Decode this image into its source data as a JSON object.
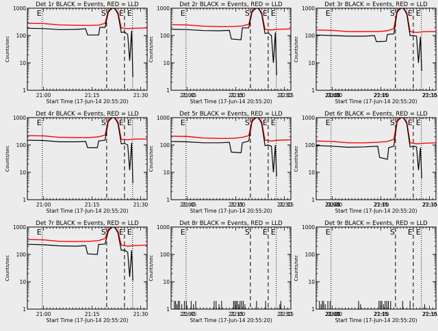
{
  "chart_data": {
    "type": "line",
    "yscale": "log",
    "ylim": [
      1,
      1000
    ],
    "ylabel": "Counts/sec",
    "xlabel": "Start Time (17-Jun-14 20:55:20)",
    "x_range_min": [
      0,
      37
    ],
    "x_tick_labels": [
      "21:00",
      "21:15",
      "21:30",
      "21:45",
      "22:00",
      "22:15",
      "22:30"
    ],
    "y_tick_labels": [
      "1",
      "10",
      "100",
      "1000"
    ],
    "series_legend": {
      "black": "Events",
      "red": "LLD"
    },
    "colors": {
      "events": "#000000",
      "lld": "#ff0000"
    },
    "markers": [
      {
        "label": "E",
        "x": 4.6,
        "style": "dotted"
      },
      {
        "label": "S",
        "x": 24.5,
        "style": "dashed"
      },
      {
        "label": "E",
        "x": 30.0,
        "style": "dashed"
      },
      {
        "label": "E",
        "x": 32.5,
        "style": "dotted"
      }
    ],
    "detectors": [
      {
        "title": "Det 1r BLACK = Events, RED = LLD",
        "has_lld": true,
        "ev": [
          [
            0,
            185
          ],
          [
            5,
            180
          ],
          [
            10,
            165
          ],
          [
            15,
            168
          ],
          [
            18,
            178
          ],
          [
            18.6,
            105
          ],
          [
            22,
            105
          ],
          [
            22.4,
            200
          ],
          [
            24,
            200
          ],
          [
            25,
            700
          ],
          [
            26,
            1000
          ],
          [
            27,
            1000
          ],
          [
            28,
            600
          ],
          [
            29,
            130
          ],
          [
            30,
            135
          ],
          [
            31,
            110
          ],
          [
            31.6,
            12
          ],
          [
            32.2,
            150
          ],
          [
            32.6,
            3
          ]
        ],
        "lld": [
          [
            0,
            280
          ],
          [
            5,
            275
          ],
          [
            10,
            245
          ],
          [
            15,
            238
          ],
          [
            19,
            235
          ],
          [
            22,
            240
          ],
          [
            24,
            280
          ],
          [
            25,
            800
          ],
          [
            26,
            1000
          ],
          [
            27,
            1000
          ],
          [
            28,
            700
          ],
          [
            29,
            190
          ],
          [
            31,
            180
          ],
          [
            33,
            185
          ],
          [
            37,
            190
          ]
        ]
      },
      {
        "title": "Det 2r BLACK = Events, RED = LLD",
        "has_lld": true,
        "ev": [
          [
            0,
            170
          ],
          [
            5,
            165
          ],
          [
            10,
            152
          ],
          [
            15,
            150
          ],
          [
            18,
            155
          ],
          [
            18.6,
            75
          ],
          [
            21.6,
            70
          ],
          [
            22,
            190
          ],
          [
            24,
            190
          ],
          [
            25,
            700
          ],
          [
            26,
            1000
          ],
          [
            27,
            1000
          ],
          [
            28,
            600
          ],
          [
            29,
            120
          ],
          [
            30,
            125
          ],
          [
            31,
            100
          ],
          [
            31.6,
            10
          ],
          [
            32.2,
            130
          ],
          [
            32.6,
            3.5
          ]
        ],
        "lld": [
          [
            0,
            250
          ],
          [
            5,
            245
          ],
          [
            10,
            220
          ],
          [
            15,
            215
          ],
          [
            19,
            215
          ],
          [
            22,
            225
          ],
          [
            24,
            260
          ],
          [
            25,
            800
          ],
          [
            26,
            1000
          ],
          [
            27,
            1000
          ],
          [
            28,
            700
          ],
          [
            29,
            170
          ],
          [
            31,
            160
          ],
          [
            33,
            170
          ],
          [
            37,
            175
          ]
        ]
      },
      {
        "title": "Det 3r BLACK = Events, RED = LLD",
        "has_lld": true,
        "ev": [
          [
            0,
            105
          ],
          [
            5,
            100
          ],
          [
            10,
            95
          ],
          [
            15,
            95
          ],
          [
            18,
            100
          ],
          [
            18.6,
            60
          ],
          [
            21.6,
            62
          ],
          [
            22,
            110
          ],
          [
            24,
            115
          ],
          [
            25,
            700
          ],
          [
            26,
            1000
          ],
          [
            27,
            1000
          ],
          [
            28,
            600
          ],
          [
            29,
            100
          ],
          [
            30,
            100
          ],
          [
            31,
            95
          ],
          [
            31.6,
            10
          ],
          [
            32.2,
            90
          ],
          [
            32.6,
            5
          ]
        ],
        "lld": [
          [
            0,
            160
          ],
          [
            5,
            155
          ],
          [
            10,
            140
          ],
          [
            15,
            140
          ],
          [
            19,
            140
          ],
          [
            22,
            150
          ],
          [
            24,
            180
          ],
          [
            25,
            800
          ],
          [
            26,
            1000
          ],
          [
            27,
            1000
          ],
          [
            28,
            700
          ],
          [
            29,
            140
          ],
          [
            31,
            130
          ],
          [
            33,
            138
          ],
          [
            37,
            140
          ]
        ]
      },
      {
        "title": "Det 4r BLACK = Events, RED = LLD",
        "has_lld": true,
        "ev": [
          [
            0,
            150
          ],
          [
            5,
            145
          ],
          [
            10,
            130
          ],
          [
            15,
            130
          ],
          [
            18,
            135
          ],
          [
            18.6,
            80
          ],
          [
            21.6,
            80
          ],
          [
            22,
            140
          ],
          [
            24,
            150
          ],
          [
            25,
            700
          ],
          [
            26,
            1000
          ],
          [
            27,
            1000
          ],
          [
            28,
            600
          ],
          [
            29,
            110
          ],
          [
            30,
            115
          ],
          [
            31,
            100
          ],
          [
            31.6,
            12
          ],
          [
            32.2,
            120
          ],
          [
            32.6,
            4
          ]
        ],
        "lld": [
          [
            0,
            220
          ],
          [
            5,
            215
          ],
          [
            10,
            190
          ],
          [
            15,
            185
          ],
          [
            19,
            185
          ],
          [
            22,
            200
          ],
          [
            24,
            230
          ],
          [
            25,
            800
          ],
          [
            26,
            1000
          ],
          [
            27,
            1000
          ],
          [
            28,
            700
          ],
          [
            29,
            160
          ],
          [
            31,
            155
          ],
          [
            33,
            165
          ],
          [
            37,
            165
          ]
        ]
      },
      {
        "title": "Det 5r BLACK = Events, RED = LLD",
        "has_lld": true,
        "ev": [
          [
            0,
            135
          ],
          [
            5,
            130
          ],
          [
            10,
            120
          ],
          [
            15,
            120
          ],
          [
            18,
            125
          ],
          [
            18.6,
            55
          ],
          [
            21.6,
            52
          ],
          [
            22,
            120
          ],
          [
            24,
            140
          ],
          [
            25,
            700
          ],
          [
            26,
            1000
          ],
          [
            27,
            1000
          ],
          [
            28,
            600
          ],
          [
            29,
            95
          ],
          [
            30,
            100
          ],
          [
            31,
            90
          ],
          [
            31.6,
            10
          ],
          [
            32.2,
            100
          ],
          [
            32.6,
            7
          ]
        ],
        "lld": [
          [
            0,
            210
          ],
          [
            5,
            205
          ],
          [
            10,
            180
          ],
          [
            15,
            175
          ],
          [
            19,
            175
          ],
          [
            22,
            190
          ],
          [
            24,
            220
          ],
          [
            25,
            800
          ],
          [
            26,
            1000
          ],
          [
            27,
            1000
          ],
          [
            28,
            700
          ],
          [
            29,
            150
          ],
          [
            31,
            140
          ],
          [
            33,
            150
          ],
          [
            37,
            155
          ]
        ]
      },
      {
        "title": "Det 6r BLACK = Events, RED = LLD",
        "has_lld": true,
        "ev": [
          [
            0,
            95
          ],
          [
            5,
            90
          ],
          [
            10,
            82
          ],
          [
            15,
            85
          ],
          [
            19,
            90
          ],
          [
            19.6,
            35
          ],
          [
            22,
            30
          ],
          [
            22.4,
            80
          ],
          [
            24,
            90
          ],
          [
            25,
            700
          ],
          [
            26,
            1000
          ],
          [
            27,
            1000
          ],
          [
            28,
            600
          ],
          [
            29,
            85
          ],
          [
            30,
            90
          ],
          [
            31,
            85
          ],
          [
            31.6,
            12
          ],
          [
            32.2,
            80
          ],
          [
            32.6,
            6
          ]
        ],
        "lld": [
          [
            0,
            140
          ],
          [
            5,
            135
          ],
          [
            10,
            120
          ],
          [
            15,
            120
          ],
          [
            19,
            125
          ],
          [
            22,
            135
          ],
          [
            24,
            160
          ],
          [
            25,
            800
          ],
          [
            26,
            1000
          ],
          [
            27,
            1000
          ],
          [
            28,
            700
          ],
          [
            29,
            120
          ],
          [
            31,
            110
          ],
          [
            33,
            115
          ],
          [
            37,
            120
          ]
        ]
      },
      {
        "title": "Det 7r BLACK = Events, RED = LLD",
        "has_lld": true,
        "ev": [
          [
            0,
            235
          ],
          [
            5,
            225
          ],
          [
            10,
            205
          ],
          [
            15,
            200
          ],
          [
            18,
            210
          ],
          [
            18.6,
            105
          ],
          [
            21.6,
            100
          ],
          [
            22,
            230
          ],
          [
            24,
            240
          ],
          [
            25,
            700
          ],
          [
            26,
            1000
          ],
          [
            27,
            1000
          ],
          [
            28,
            600
          ],
          [
            29,
            140
          ],
          [
            30,
            145
          ],
          [
            31,
            120
          ],
          [
            31.6,
            15
          ],
          [
            32.2,
            140
          ],
          [
            32.6,
            11
          ]
        ],
        "lld": [
          [
            0,
            350
          ],
          [
            5,
            340
          ],
          [
            10,
            300
          ],
          [
            15,
            295
          ],
          [
            19,
            300
          ],
          [
            22,
            320
          ],
          [
            24,
            380
          ],
          [
            25,
            800
          ],
          [
            26,
            1000
          ],
          [
            27,
            1000
          ],
          [
            28,
            700
          ],
          [
            29,
            220
          ],
          [
            31,
            200
          ],
          [
            33,
            210
          ],
          [
            37,
            220
          ]
        ]
      },
      {
        "title": "Det 8r BLACK = Events, RED = LLD",
        "has_lld": false,
        "spikes": [
          [
            1.0,
            2
          ],
          [
            1.4,
            2
          ],
          [
            1.8,
            1.5
          ],
          [
            2.2,
            2
          ],
          [
            2.6,
            2
          ],
          [
            3.3,
            1.5
          ],
          [
            4.1,
            2
          ],
          [
            4.7,
            2
          ],
          [
            6.2,
            2
          ],
          [
            6.9,
            1.5
          ],
          [
            7.6,
            2
          ],
          [
            13.3,
            2
          ],
          [
            13.9,
            2
          ],
          [
            14.8,
            1.5
          ],
          [
            15.6,
            2
          ],
          [
            19.3,
            2
          ],
          [
            19.7,
            2
          ],
          [
            20.1,
            2
          ],
          [
            20.5,
            2
          ],
          [
            20.9,
            1.5
          ],
          [
            21.3,
            2
          ],
          [
            21.8,
            2
          ],
          [
            22.3,
            2
          ],
          [
            22.8,
            1.5
          ],
          [
            26.4,
            2
          ],
          [
            29.2,
            2
          ],
          [
            33.6,
            1.5
          ],
          [
            33.9,
            2
          ]
        ]
      },
      {
        "title": "Det 9r BLACK = Events, RED = LLD",
        "has_lld": false,
        "spikes": [
          [
            1.0,
            2
          ],
          [
            1.5,
            1.5
          ],
          [
            1.9,
            2
          ],
          [
            2.3,
            2
          ],
          [
            2.8,
            1.5
          ],
          [
            3.6,
            2
          ],
          [
            4.3,
            2
          ],
          [
            13.1,
            2
          ],
          [
            13.7,
            1.5
          ],
          [
            19.4,
            2
          ],
          [
            19.9,
            2
          ],
          [
            20.3,
            2
          ],
          [
            20.8,
            1.5
          ],
          [
            21.3,
            2
          ],
          [
            21.8,
            2
          ],
          [
            22.3,
            2
          ],
          [
            23.0,
            2
          ],
          [
            26.7,
            2
          ],
          [
            29.0,
            2
          ],
          [
            33.5,
            1.5
          ]
        ]
      }
    ]
  }
}
